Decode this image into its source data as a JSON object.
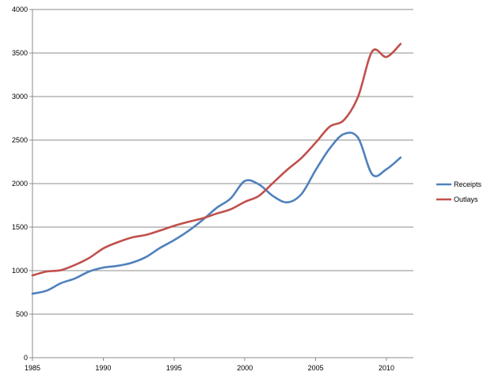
{
  "chart_data": {
    "type": "line",
    "title": "",
    "xlabel": "",
    "ylabel": "",
    "xlim": [
      1985,
      2011.9
    ],
    "ylim": [
      0,
      4000
    ],
    "x_ticks": [
      1985,
      1990,
      1995,
      2000,
      2005,
      2010
    ],
    "y_ticks": [
      0,
      500,
      1000,
      1500,
      2000,
      2500,
      3000,
      3500,
      4000
    ],
    "x_tick_labels": [
      "1985",
      "1990",
      "1995",
      "2000",
      "2005",
      "2010"
    ],
    "y_tick_labels": [
      "0",
      "500",
      "1000",
      "1500",
      "2000",
      "2500",
      "3000",
      "3500",
      "4000"
    ],
    "grid": "horizontal",
    "legend_position": "right",
    "x": [
      1985,
      1986,
      1987,
      1988,
      1989,
      1990,
      1991,
      1992,
      1993,
      1994,
      1995,
      1996,
      1997,
      1998,
      1999,
      2000,
      2001,
      2002,
      2003,
      2004,
      2005,
      2006,
      2007,
      2008,
      2009,
      2010,
      2011
    ],
    "series": [
      {
        "name": "Receipts",
        "color": "#4f81bd",
        "values": [
          735,
          770,
          855,
          910,
          990,
          1035,
          1055,
          1090,
          1155,
          1260,
          1350,
          1455,
          1580,
          1720,
          1830,
          2030,
          1990,
          1855,
          1785,
          1880,
          2155,
          2405,
          2570,
          2525,
          2105,
          2165,
          2300
        ]
      },
      {
        "name": "Outlays",
        "color": "#c0504d",
        "values": [
          945,
          990,
          1005,
          1065,
          1145,
          1255,
          1325,
          1380,
          1410,
          1460,
          1515,
          1560,
          1600,
          1655,
          1705,
          1790,
          1860,
          2010,
          2160,
          2295,
          2470,
          2655,
          2730,
          3000,
          3520,
          3455,
          3605
        ]
      }
    ]
  }
}
